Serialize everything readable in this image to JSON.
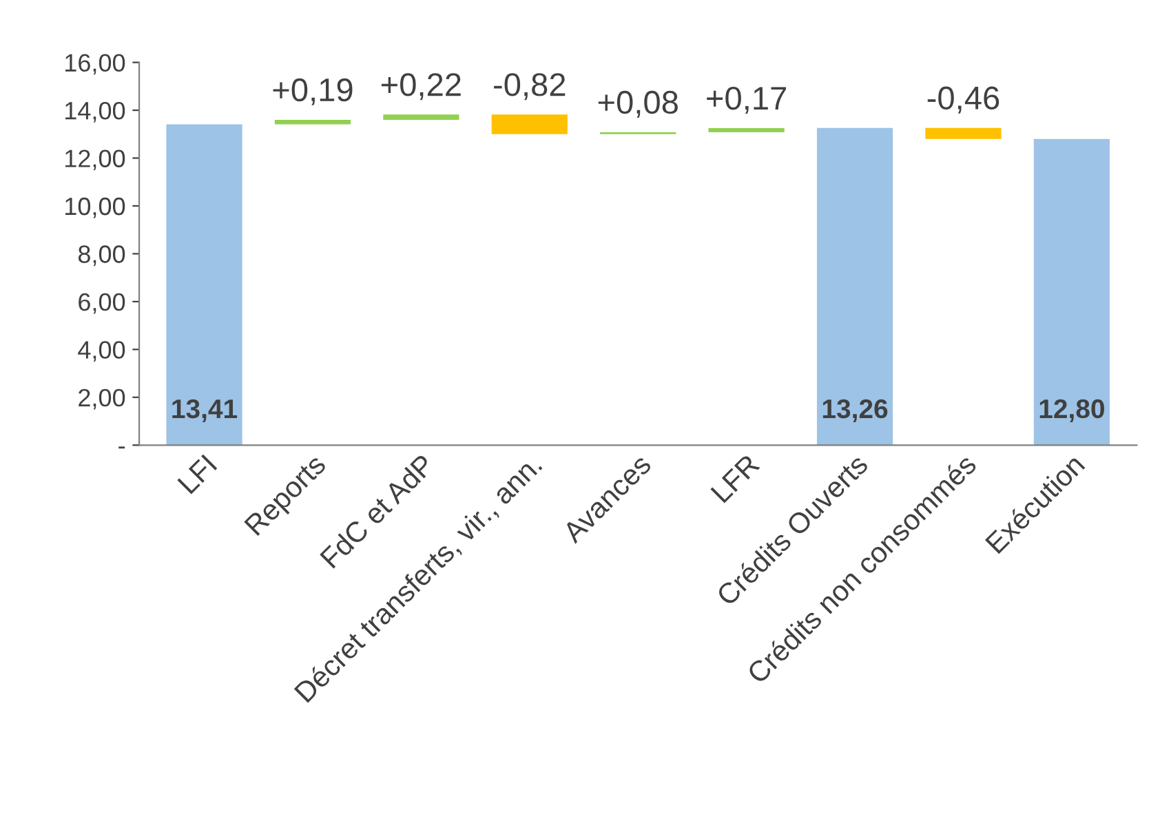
{
  "chart_data": {
    "type": "bar",
    "categories": [
      "LFI",
      "Reports",
      "FdC et AdP",
      "Décret transferts, vir., ann.",
      "Avances",
      "LFR",
      "Crédits Ouverts",
      "Crédits non consommés",
      "Exécution"
    ],
    "values": [
      13.41,
      0.19,
      0.22,
      -0.82,
      0.08,
      0.17,
      13.26,
      -0.46,
      12.8
    ],
    "base": [
      0,
      13.41,
      13.6,
      13.82,
      13.0,
      13.08,
      0,
      13.26,
      0
    ],
    "colors": [
      "#9dc3e6",
      "#92d050",
      "#92d050",
      "#ffc000",
      "#92d050",
      "#92d050",
      "#9dc3e6",
      "#ffc000",
      "#9dc3e6"
    ],
    "value_labels": [
      "13,41",
      "+0,19",
      "+0,22",
      "-0,82",
      "+0,08",
      "+0,17",
      "13,26",
      "-0,46",
      "12,80"
    ],
    "ylim": [
      0,
      16
    ],
    "yticks": [
      {
        "value": 0,
        "label": "-"
      },
      {
        "value": 2,
        "label": "2,00"
      },
      {
        "value": 4,
        "label": "4,00"
      },
      {
        "value": 6,
        "label": "6,00"
      },
      {
        "value": 8,
        "label": "8,00"
      },
      {
        "value": 10,
        "label": "10,00"
      },
      {
        "value": 12,
        "label": "12,00"
      },
      {
        "value": 14,
        "label": "14,00"
      },
      {
        "value": 16,
        "label": "16,00"
      }
    ],
    "grid": false
  }
}
